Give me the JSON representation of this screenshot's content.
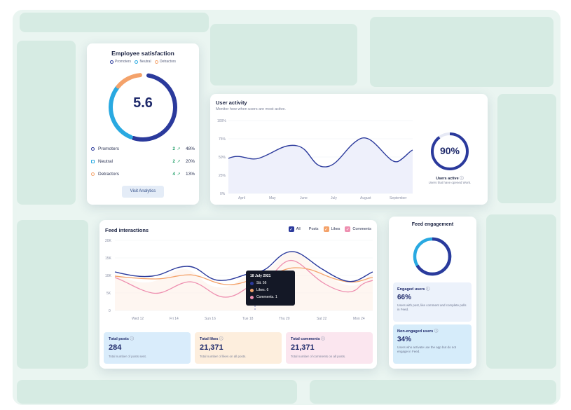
{
  "employee_satisfaction": {
    "title": "Employee satisfaction",
    "legend": [
      "Promoters",
      "Neutral",
      "Detractors"
    ],
    "score": "5.6",
    "rows": [
      {
        "label": "Promoters",
        "count": "2",
        "pct": "48%",
        "color": "#2b3a9c"
      },
      {
        "label": "Neutral",
        "count": "2",
        "pct": "20%",
        "color": "#29a9e1"
      },
      {
        "label": "Detractors",
        "count": "4",
        "pct": "13%",
        "color": "#f4a26a"
      }
    ],
    "button": "Visit Analytics"
  },
  "user_activity": {
    "title": "User activity",
    "subtitle": "Monitor how when users are most active.",
    "y_ticks": [
      "100%",
      "75%",
      "50%",
      "25%",
      "0%"
    ],
    "x_ticks": [
      "April",
      "May",
      "June",
      "July",
      "August",
      "September"
    ],
    "ring_value": "90%",
    "ring_label": "Users active",
    "ring_sub": "Users that have opened Work."
  },
  "feed_interactions": {
    "title": "Feed interactions",
    "legend": {
      "all": "All",
      "posts": "Posts",
      "likes": "Likes",
      "comments": "Comments"
    },
    "y_ticks": [
      "20K",
      "15K",
      "10K",
      "5K",
      "0"
    ],
    "x_ticks": [
      "Wed 12",
      "Fri 14",
      "Sun 16",
      "Tue 18",
      "Thu 20",
      "Sat 22",
      "Mon 24"
    ],
    "tooltip": {
      "date": "18 July 2021",
      "posts": "Stt. 56",
      "likes": "Likes. 6",
      "comments": "Comments. 1"
    },
    "stats": [
      {
        "title": "Total posts",
        "value": "284",
        "desc": "Total number of posts sent.",
        "bg": "#d9ecfb"
      },
      {
        "title": "Total likes",
        "value": "21,371",
        "desc": "Total number of likes on all posts.",
        "bg": "#fdeedd"
      },
      {
        "title": "Total comments",
        "value": "21,371",
        "desc": "Total number of comments on all posts.",
        "bg": "#fbe6ef"
      }
    ]
  },
  "feed_engagement": {
    "title": "Feed engagement",
    "engaged": {
      "title": "Engaged users",
      "value": "66%",
      "desc": "Users with post, like comment and complete polls in Feed."
    },
    "non_engaged": {
      "title": "Non-engaged users",
      "value": "34%",
      "desc": "Users who activate use the app but do not engage in Feed."
    }
  },
  "colors": {
    "navy": "#2b3a9c",
    "blue": "#29a9e1",
    "orange": "#f4a26a",
    "pink": "#ee8fb0"
  }
}
